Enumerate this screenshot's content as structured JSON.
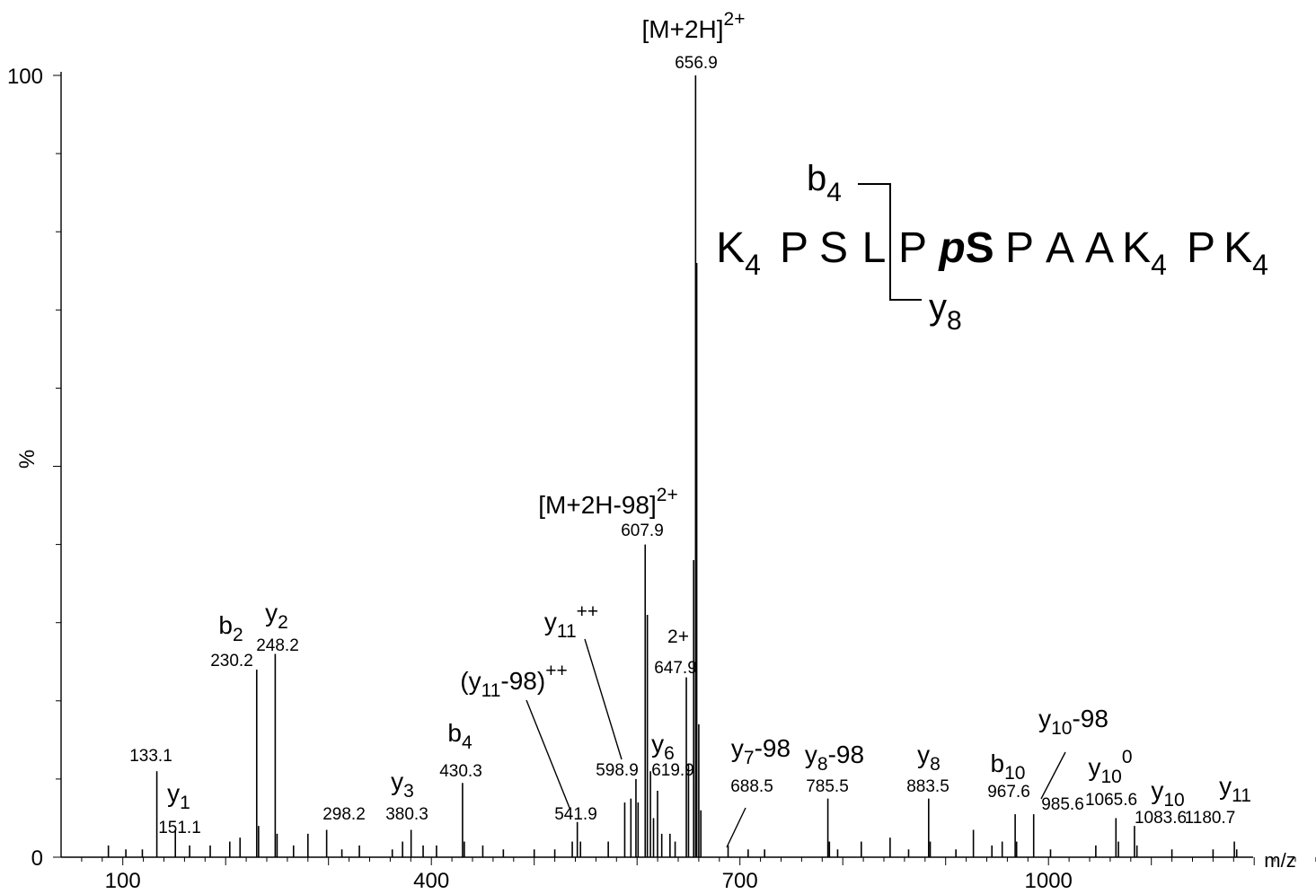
{
  "chart_data": {
    "type": "bar",
    "title": "",
    "xlabel": "m/z",
    "ylabel": "%",
    "xlim": [
      40,
      1345
    ],
    "ylim": [
      0,
      100
    ],
    "x_ticks": [
      100,
      400,
      700,
      1000
    ],
    "y_ticks": [
      0,
      100
    ],
    "grid": false,
    "peaks": [
      {
        "mz": 133.1,
        "intensity": 11,
        "label": "133.1"
      },
      {
        "mz": 151.1,
        "intensity": 3.5,
        "label": "151.1"
      },
      {
        "mz": 230.2,
        "intensity": 24,
        "label": "230.2"
      },
      {
        "mz": 248.2,
        "intensity": 26,
        "label": "248.2"
      },
      {
        "mz": 298.2,
        "intensity": 3.5,
        "label": "298.2"
      },
      {
        "mz": 380.3,
        "intensity": 3.5,
        "label": "380.3"
      },
      {
        "mz": 430.3,
        "intensity": 9.5,
        "label": "430.3"
      },
      {
        "mz": 541.9,
        "intensity": 4.5,
        "label": "541.9"
      },
      {
        "mz": 598.9,
        "intensity": 10,
        "label": "598.9"
      },
      {
        "mz": 607.9,
        "intensity": 40,
        "label": "607.9"
      },
      {
        "mz": 619.9,
        "intensity": 8.5,
        "label": "619.9"
      },
      {
        "mz": 647.9,
        "intensity": 23,
        "label": "647.9"
      },
      {
        "mz": 656.9,
        "intensity": 100,
        "label": "656.9"
      },
      {
        "mz": 688.5,
        "intensity": 1.5,
        "label": "688.5"
      },
      {
        "mz": 785.5,
        "intensity": 7.5,
        "label": "785.5"
      },
      {
        "mz": 883.5,
        "intensity": 7.5,
        "label": "883.5"
      },
      {
        "mz": 967.6,
        "intensity": 5.5,
        "label": "967.6"
      },
      {
        "mz": 985.6,
        "intensity": 5.5,
        "label": "985.6"
      },
      {
        "mz": 1065.6,
        "intensity": 5,
        "label": "1065.6"
      },
      {
        "mz": 1083.6,
        "intensity": 4,
        "label": "1083.6"
      },
      {
        "mz": 1180.7,
        "intensity": 2,
        "label": "1180.7"
      }
    ],
    "minor_peaks": [
      {
        "mz": 86,
        "intensity": 1.5
      },
      {
        "mz": 103,
        "intensity": 1
      },
      {
        "mz": 119,
        "intensity": 1
      },
      {
        "mz": 165,
        "intensity": 1.5
      },
      {
        "mz": 185,
        "intensity": 1.5
      },
      {
        "mz": 204,
        "intensity": 2
      },
      {
        "mz": 214,
        "intensity": 2.5
      },
      {
        "mz": 232,
        "intensity": 4
      },
      {
        "mz": 250,
        "intensity": 3
      },
      {
        "mz": 266,
        "intensity": 1.5
      },
      {
        "mz": 280,
        "intensity": 3
      },
      {
        "mz": 313,
        "intensity": 1
      },
      {
        "mz": 330,
        "intensity": 1.5
      },
      {
        "mz": 362,
        "intensity": 1
      },
      {
        "mz": 372,
        "intensity": 2
      },
      {
        "mz": 392,
        "intensity": 1.5
      },
      {
        "mz": 405,
        "intensity": 1.5
      },
      {
        "mz": 432,
        "intensity": 2
      },
      {
        "mz": 450,
        "intensity": 1.5
      },
      {
        "mz": 470,
        "intensity": 1
      },
      {
        "mz": 500,
        "intensity": 1
      },
      {
        "mz": 520,
        "intensity": 1
      },
      {
        "mz": 537,
        "intensity": 2
      },
      {
        "mz": 545,
        "intensity": 2
      },
      {
        "mz": 572,
        "intensity": 2
      },
      {
        "mz": 588,
        "intensity": 7
      },
      {
        "mz": 594,
        "intensity": 7.5
      },
      {
        "mz": 601,
        "intensity": 7
      },
      {
        "mz": 610,
        "intensity": 31
      },
      {
        "mz": 613,
        "intensity": 11
      },
      {
        "mz": 616,
        "intensity": 5
      },
      {
        "mz": 624,
        "intensity": 3
      },
      {
        "mz": 632,
        "intensity": 3
      },
      {
        "mz": 637,
        "intensity": 2
      },
      {
        "mz": 650,
        "intensity": 12
      },
      {
        "mz": 655,
        "intensity": 38
      },
      {
        "mz": 658,
        "intensity": 76
      },
      {
        "mz": 660,
        "intensity": 17
      },
      {
        "mz": 662,
        "intensity": 6
      },
      {
        "mz": 708,
        "intensity": 1
      },
      {
        "mz": 724,
        "intensity": 1
      },
      {
        "mz": 787,
        "intensity": 2
      },
      {
        "mz": 795,
        "intensity": 1
      },
      {
        "mz": 818,
        "intensity": 2
      },
      {
        "mz": 846,
        "intensity": 2.5
      },
      {
        "mz": 864,
        "intensity": 1
      },
      {
        "mz": 885,
        "intensity": 2
      },
      {
        "mz": 910,
        "intensity": 1
      },
      {
        "mz": 927,
        "intensity": 3.5
      },
      {
        "mz": 945,
        "intensity": 1.5
      },
      {
        "mz": 955,
        "intensity": 2
      },
      {
        "mz": 969,
        "intensity": 2
      },
      {
        "mz": 1002,
        "intensity": 1
      },
      {
        "mz": 1046,
        "intensity": 1.5
      },
      {
        "mz": 1068,
        "intensity": 2
      },
      {
        "mz": 1086,
        "intensity": 1.5
      },
      {
        "mz": 1120,
        "intensity": 1
      },
      {
        "mz": 1160,
        "intensity": 1
      },
      {
        "mz": 1183,
        "intensity": 1
      }
    ],
    "annotations": [
      {
        "main": "[M+2H]",
        "sup": "2+"
      },
      {
        "main": "[M+2H-98]",
        "sup": "2+"
      },
      {
        "main": "y",
        "sub": "11",
        "sup": "++"
      },
      {
        "main": "(y",
        "sub": "11",
        "main2": "-98)",
        "sup": "++"
      },
      {
        "sup": "2+"
      },
      {
        "main": "b",
        "sub": "2"
      },
      {
        "main": "y",
        "sub": "2"
      },
      {
        "main": "y",
        "sub": "1"
      },
      {
        "main": "y",
        "sub": "3"
      },
      {
        "main": "b",
        "sub": "4"
      },
      {
        "main": "y",
        "sub": "6"
      },
      {
        "main": "y",
        "sub": "7",
        "main2": "-98"
      },
      {
        "main": "y",
        "sub": "8",
        "main2": "-98"
      },
      {
        "main": "y",
        "sub": "8"
      },
      {
        "main": "b",
        "sub": "10"
      },
      {
        "main": "y",
        "sub": "10",
        "main2": "-98"
      },
      {
        "main": "y",
        "sub": "10",
        "sup": "0"
      },
      {
        "main": "y",
        "sub": "10"
      },
      {
        "main": "y",
        "sub": "11"
      }
    ],
    "sequence": {
      "residues": [
        {
          "t": "K",
          "sub": "4"
        },
        {
          "t": "P"
        },
        {
          "t": "S"
        },
        {
          "t": "L"
        },
        {
          "t": "P"
        },
        {
          "t": "pS",
          "emph": true
        },
        {
          "t": "P"
        },
        {
          "t": "A"
        },
        {
          "t": "A"
        },
        {
          "t": "K",
          "sub": "4"
        },
        {
          "t": "P"
        },
        {
          "t": "K",
          "sub": "4"
        }
      ],
      "fragments": [
        {
          "main": "b",
          "sub": "4"
        },
        {
          "main": "y",
          "sub": "8"
        }
      ]
    }
  }
}
